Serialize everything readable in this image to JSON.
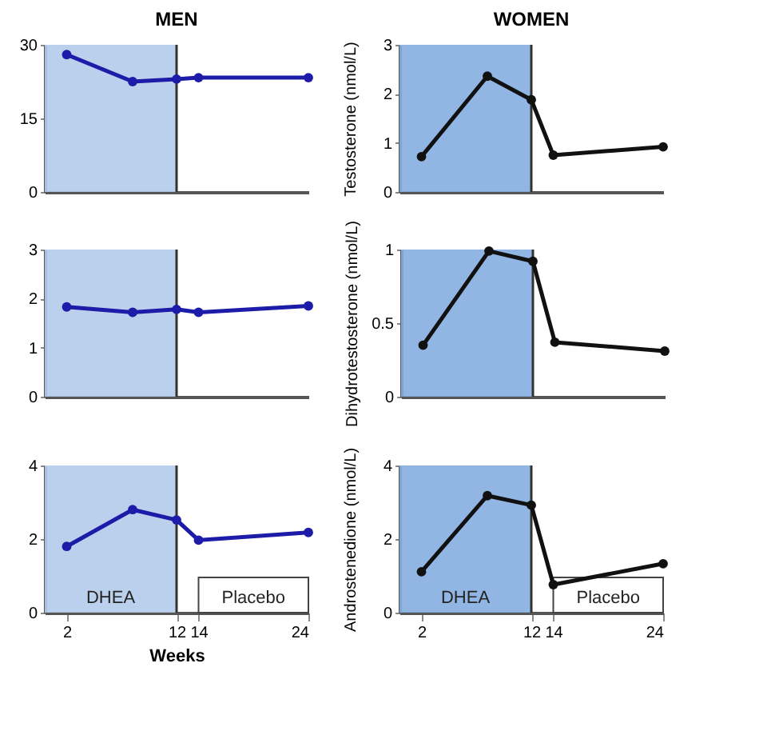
{
  "chart_data": [
    {
      "type": "line",
      "title": "MEN",
      "x": [
        2,
        8,
        12,
        14,
        24
      ],
      "xlim": [
        0,
        24
      ],
      "xticks": [
        2,
        12,
        14,
        24
      ],
      "ylim": [
        0,
        30
      ],
      "yticks": [
        0,
        15,
        30
      ],
      "tick_labels": "y",
      "marker": "circle",
      "grid": false,
      "series": [
        {
          "color": "#1c1ca8",
          "values": [
            28,
            22.5,
            23,
            23.3,
            23.3
          ]
        }
      ],
      "bands": [
        {
          "axis": "x",
          "from": 0,
          "to": 12,
          "color": "#b3cbea"
        }
      ],
      "ref_lines": [
        {
          "axis": "x",
          "value": 12
        }
      ]
    },
    {
      "type": "line",
      "title": "WOMEN",
      "ylabel": "Testosterone (nmol/L)",
      "x": [
        2,
        8,
        12,
        14,
        24
      ],
      "xlim": [
        0,
        24
      ],
      "xticks": [
        2,
        12,
        14,
        24
      ],
      "ylim": [
        0,
        3
      ],
      "yticks": [
        0,
        1,
        2,
        3
      ],
      "tick_labels": "y",
      "marker": "circle",
      "grid": false,
      "series": [
        {
          "color": "#111111",
          "values": [
            0.72,
            2.36,
            1.88,
            0.75,
            0.92
          ]
        }
      ],
      "bands": [
        {
          "axis": "x",
          "from": 0,
          "to": 12,
          "color": "#86aee0"
        }
      ],
      "ref_lines": [
        {
          "axis": "x",
          "value": 12
        }
      ]
    },
    {
      "type": "line",
      "x": [
        2,
        8,
        12,
        14,
        24
      ],
      "xlim": [
        0,
        24
      ],
      "xticks": [
        2,
        12,
        14,
        24
      ],
      "ylim": [
        0,
        3
      ],
      "yticks": [
        0,
        1,
        2,
        3
      ],
      "tick_labels": "y",
      "marker": "circle",
      "grid": false,
      "series": [
        {
          "color": "#1c1ca8",
          "values": [
            1.83,
            1.72,
            1.78,
            1.72,
            1.85
          ]
        }
      ],
      "bands": [
        {
          "axis": "x",
          "from": 0,
          "to": 12,
          "color": "#b3cbea"
        }
      ],
      "ref_lines": [
        {
          "axis": "x",
          "value": 12
        }
      ]
    },
    {
      "type": "line",
      "ylabel": "Dihydrotestosterone (nmol/L)",
      "x": [
        2,
        8,
        12,
        14,
        24
      ],
      "xlim": [
        0,
        24
      ],
      "xticks": [
        2,
        12,
        14,
        24
      ],
      "ylim": [
        0,
        1
      ],
      "yticks": [
        0,
        0.5,
        1
      ],
      "tick_labels": "y",
      "marker": "circle",
      "grid": false,
      "series": [
        {
          "color": "#111111",
          "values": [
            0.35,
            0.99,
            0.92,
            0.37,
            0.31
          ]
        }
      ],
      "bands": [
        {
          "axis": "x",
          "from": 0,
          "to": 12,
          "color": "#86aee0"
        }
      ],
      "ref_lines": [
        {
          "axis": "x",
          "value": 12
        }
      ]
    },
    {
      "type": "line",
      "xlabel": "Weeks",
      "x": [
        2,
        8,
        12,
        14,
        24
      ],
      "xlim": [
        0,
        24
      ],
      "xticks": [
        2,
        12,
        14,
        24
      ],
      "ylim": [
        0,
        4
      ],
      "yticks": [
        0,
        2,
        4
      ],
      "marker": "circle",
      "grid": false,
      "series": [
        {
          "color": "#1c1ca8",
          "values": [
            1.8,
            2.8,
            2.52,
            1.97,
            2.18
          ]
        }
      ],
      "bands": [
        {
          "axis": "x",
          "from": 0,
          "to": 12,
          "color": "#b3cbea",
          "label": "DHEA"
        },
        {
          "axis": "x",
          "from": 14,
          "to": 24,
          "color": "#ffffff",
          "label": "Placebo"
        }
      ],
      "ref_lines": [
        {
          "axis": "x",
          "value": 12
        }
      ]
    },
    {
      "type": "line",
      "ylabel": "Androstenedione (nmol/L)",
      "x": [
        2,
        8,
        12,
        14,
        24
      ],
      "xlim": [
        0,
        24
      ],
      "xticks": [
        2,
        12,
        14,
        24
      ],
      "ylim": [
        0,
        4
      ],
      "yticks": [
        0,
        2,
        4
      ],
      "marker": "circle",
      "grid": false,
      "series": [
        {
          "color": "#111111",
          "values": [
            1.11,
            3.18,
            2.92,
            0.76,
            1.33
          ]
        }
      ],
      "bands": [
        {
          "axis": "x",
          "from": 0,
          "to": 12,
          "color": "#86aee0",
          "label": "DHEA"
        },
        {
          "axis": "x",
          "from": 14,
          "to": 24,
          "color": "#ffffff",
          "label": "Placebo"
        }
      ],
      "ref_lines": [
        {
          "axis": "x",
          "value": 12
        }
      ]
    }
  ]
}
